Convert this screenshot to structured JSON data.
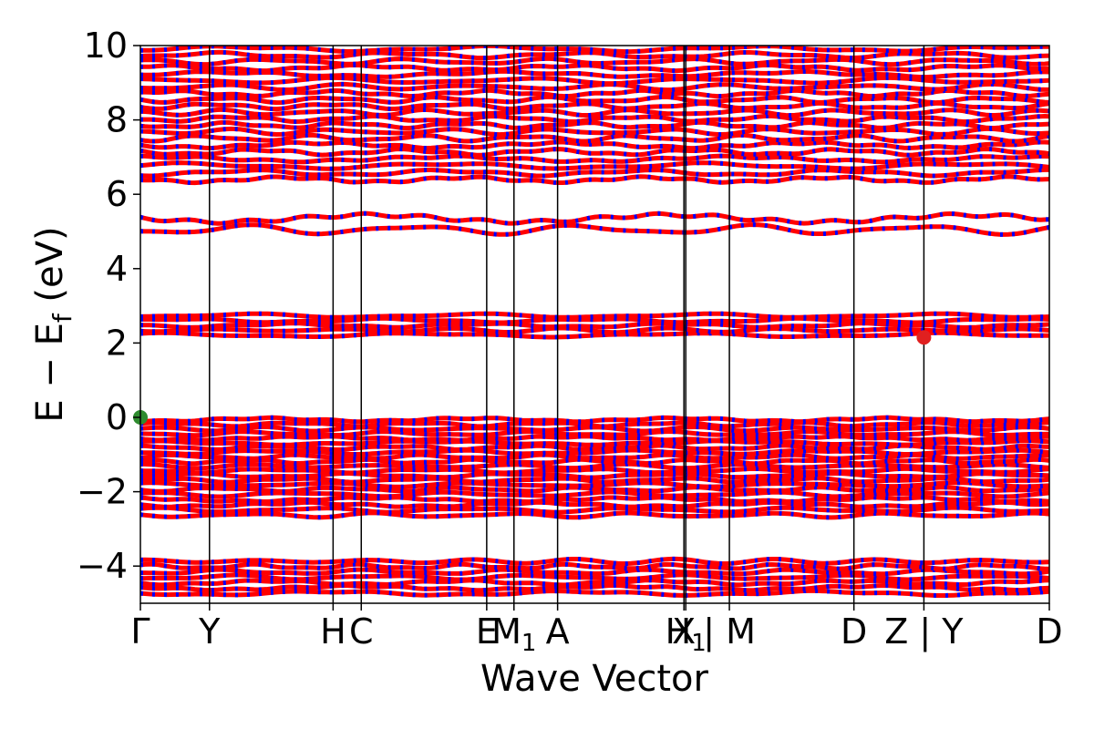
{
  "chart_data": {
    "type": "line",
    "title": "",
    "xlabel": "Wave Vector",
    "ylabel": {
      "main": "E − E",
      "subscript": "f",
      "suffix": " (eV)"
    },
    "ylim": [
      -5,
      10
    ],
    "yticks": [
      {
        "value": 10,
        "label": "10"
      },
      {
        "value": 8,
        "label": "8"
      },
      {
        "value": 6,
        "label": "6"
      },
      {
        "value": 4,
        "label": "4"
      },
      {
        "value": 2,
        "label": "2"
      },
      {
        "value": 0,
        "label": "0"
      },
      {
        "value": -2,
        "label": "−2"
      },
      {
        "value": -4,
        "label": "−4"
      }
    ],
    "xlim": [
      0,
      1
    ],
    "kpoints": [
      {
        "x": 0.0,
        "label": "Γ"
      },
      {
        "x": 0.076,
        "label": "Y"
      },
      {
        "x": 0.212,
        "label": "H"
      },
      {
        "x": 0.243,
        "label": "C"
      },
      {
        "x": 0.381,
        "label": "E"
      },
      {
        "x": 0.411,
        "label": "M",
        "sub": "1"
      },
      {
        "x": 0.459,
        "label": "A"
      },
      {
        "x": 0.598,
        "label": "X"
      },
      {
        "x": 0.6,
        "label": "H",
        "sub": "1"
      },
      {
        "x": 0.648,
        "label": "| M"
      },
      {
        "x": 0.785,
        "label": "D"
      },
      {
        "x": 0.862,
        "label": "Z | Y"
      },
      {
        "x": 1.0,
        "label": "D"
      }
    ],
    "band_groups": [
      {
        "range": [
          -4.8,
          -3.8
        ],
        "count": 7
      },
      {
        "range": [
          -2.7,
          -2.0
        ],
        "count": 5
      },
      {
        "range": [
          -2.0,
          0.0
        ],
        "count": 16
      },
      {
        "range": [
          2.15,
          2.8
        ],
        "count": 5
      },
      {
        "range": [
          4.9,
          5.5
        ],
        "count": 2
      },
      {
        "range": [
          6.3,
          7.6
        ],
        "count": 7
      },
      {
        "range": [
          7.6,
          10.0
        ],
        "count": 14
      }
    ],
    "spin_channels": [
      {
        "name": "spin up",
        "color": "#ff0000"
      },
      {
        "name": "spin down",
        "color": "#0000ff"
      }
    ],
    "markers": [
      {
        "name": "VBM",
        "x": 0.0,
        "y": 0.0,
        "color": "#2e8b2e"
      },
      {
        "name": "CBM",
        "x": 0.862,
        "y": 2.15,
        "color": "#e02020"
      }
    ],
    "grid": false
  }
}
